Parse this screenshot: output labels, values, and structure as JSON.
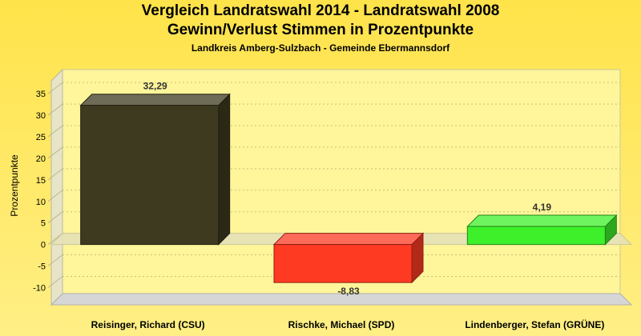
{
  "title": "Vergleich Landratswahl 2014 - Landratswahl 2008",
  "subtitle": "Gewinn/Verlust Stimmen in Prozentpunkte",
  "subsubtitle": "Landkreis Amberg-Sulzbach - Gemeinde Ebermannsdorf",
  "colors": {
    "background": "#ffe96a",
    "plot_wall": "#fff59a",
    "bar_csu": "#3d3a1f",
    "bar_spd": "#ff3a22",
    "bar_gruene": "#3ef02a"
  },
  "chart_data": {
    "type": "bar",
    "title": "Vergleich Landratswahl 2014 - Landratswahl 2008",
    "subtitle": "Gewinn/Verlust Stimmen in Prozentpunkte",
    "xlabel": "",
    "ylabel": "Prozentpunkte",
    "ylim": [
      -14,
      38
    ],
    "yticks": [
      -10,
      -5,
      0,
      5,
      10,
      15,
      20,
      25,
      30,
      35
    ],
    "categories": [
      "Reisinger, Richard (CSU)",
      "Rischke, Michael (SPD)",
      "Lindenberger, Stefan (GRÜNE)"
    ],
    "values": [
      32.29,
      -8.83,
      4.19
    ],
    "value_labels": [
      "32,29",
      "-8,83",
      "4,19"
    ],
    "colors": [
      "#3d3a1f",
      "#ff3a22",
      "#3ef02a"
    ],
    "grid": true,
    "legend": "none"
  }
}
